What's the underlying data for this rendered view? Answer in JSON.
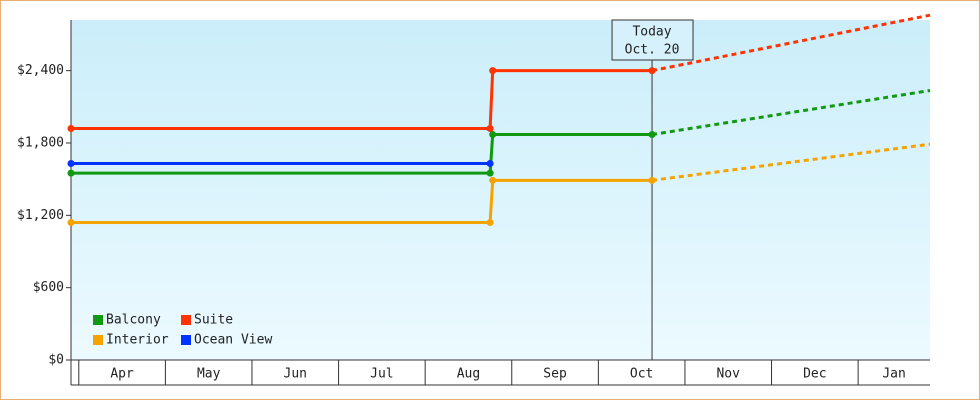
{
  "chart_data": {
    "type": "line",
    "categories": [
      "Apr",
      "May",
      "Jun",
      "Jul",
      "Aug",
      "Sep",
      "Oct",
      "Nov",
      "Dec",
      "Jan"
    ],
    "xlim": [
      -0.09,
      9.83
    ],
    "ylim": [
      0,
      2820
    ],
    "yticks": [
      {
        "value": 0,
        "label": "$0"
      },
      {
        "value": 600,
        "label": "$600"
      },
      {
        "value": 1200,
        "label": "$1,200"
      },
      {
        "value": 1800,
        "label": "$1,800"
      },
      {
        "value": 2400,
        "label": "$2,400"
      }
    ],
    "series": [
      {
        "name": "Balcony",
        "color": "#119911",
        "x": [
          -0.09,
          4.75,
          4.78,
          6.62
        ],
        "values": [
          1550,
          1550,
          1870,
          1870
        ],
        "forecast_x": [
          6.62,
          9.83
        ],
        "forecast_values": [
          1870,
          2235
        ]
      },
      {
        "name": "Suite",
        "color": "#ff3300",
        "x": [
          -0.09,
          4.75,
          4.78,
          6.62
        ],
        "values": [
          1920,
          1920,
          2400,
          2400
        ],
        "forecast_x": [
          6.62,
          9.83
        ],
        "forecast_values": [
          2400,
          2860
        ]
      },
      {
        "name": "Interior",
        "color": "#f5a300",
        "x": [
          -0.09,
          4.75,
          4.78,
          6.62
        ],
        "values": [
          1140,
          1140,
          1490,
          1490
        ],
        "forecast_x": [
          6.62,
          9.83
        ],
        "forecast_values": [
          1490,
          1790
        ]
      },
      {
        "name": "Ocean View",
        "color": "#0033ff",
        "x": [
          -0.09,
          4.75
        ],
        "values": [
          1630,
          1630
        ]
      }
    ],
    "annotation": {
      "x": 6.62,
      "lines": [
        "Today",
        "Oct. 20"
      ]
    }
  }
}
